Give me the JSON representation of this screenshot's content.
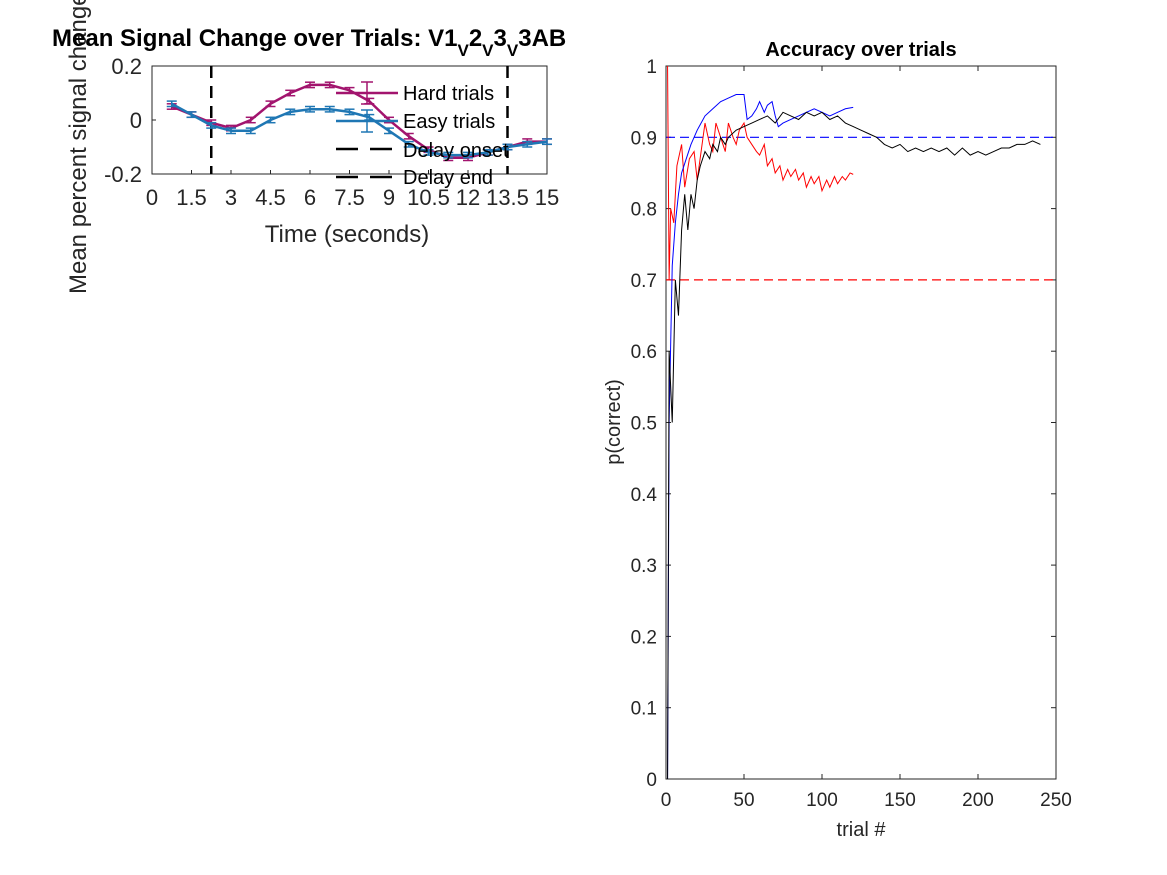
{
  "chart_data": [
    {
      "type": "line",
      "title": "Mean Signal Change over Trials: V1",
      "title_sub": [
        "V",
        "2",
        "V",
        "3",
        "V",
        "3AB"
      ],
      "xlabel": "Time (seconds)",
      "ylabel": "Mean percent signal change",
      "xlim": [
        0,
        15
      ],
      "ylim": [
        -0.2,
        0.2
      ],
      "xticks": [
        0,
        1.5,
        3,
        4.5,
        6,
        7.5,
        9,
        10.5,
        12,
        13.5,
        15
      ],
      "xtick_labels": [
        "0",
        "1.5",
        "3",
        "4.5",
        "6",
        "7.5",
        "9",
        "10.5",
        "12",
        "13.5",
        "15"
      ],
      "yticks": [
        -0.2,
        0,
        0.2
      ],
      "ytick_labels": [
        "-0.2",
        "0",
        "0.2"
      ],
      "legend": "top-right",
      "series": [
        {
          "name": "Hard trials",
          "color": "#a2146e",
          "x": [
            0.75,
            1.5,
            2.25,
            3.0,
            3.75,
            4.5,
            5.25,
            6.0,
            6.75,
            7.5,
            8.25,
            9.0,
            9.75,
            10.5,
            11.25,
            12.0,
            12.75,
            13.5,
            14.25,
            15.0
          ],
          "y": [
            0.05,
            0.02,
            -0.01,
            -0.03,
            0.0,
            0.06,
            0.1,
            0.13,
            0.13,
            0.11,
            0.07,
            0.0,
            -0.06,
            -0.11,
            -0.14,
            -0.14,
            -0.12,
            -0.1,
            -0.08,
            -0.08
          ],
          "err": [
            0.01,
            0.01,
            0.01,
            0.01,
            0.01,
            0.01,
            0.01,
            0.01,
            0.01,
            0.01,
            0.01,
            0.01,
            0.01,
            0.01,
            0.01,
            0.01,
            0.01,
            0.01,
            0.01,
            0.01
          ]
        },
        {
          "name": "Easy trials",
          "color": "#1f77b4",
          "x": [
            0.75,
            1.5,
            2.25,
            3.0,
            3.75,
            4.5,
            5.25,
            6.0,
            6.75,
            7.5,
            8.25,
            9.0,
            9.75,
            10.5,
            11.25,
            12.0,
            12.75,
            13.5,
            14.25,
            15.0
          ],
          "y": [
            0.06,
            0.02,
            -0.02,
            -0.04,
            -0.04,
            0.0,
            0.03,
            0.04,
            0.04,
            0.03,
            0.01,
            -0.04,
            -0.09,
            -0.12,
            -0.13,
            -0.13,
            -0.12,
            -0.1,
            -0.09,
            -0.08
          ],
          "err": [
            0.01,
            0.01,
            0.01,
            0.01,
            0.01,
            0.01,
            0.01,
            0.01,
            0.01,
            0.01,
            0.01,
            0.01,
            0.01,
            0.01,
            0.01,
            0.01,
            0.01,
            0.01,
            0.01,
            0.01
          ]
        }
      ],
      "vlines": [
        {
          "name": "Delay onset",
          "x": 2.25
        },
        {
          "name": "Delay end",
          "x": 13.5
        }
      ]
    },
    {
      "type": "line",
      "title": "Accuracy over trials",
      "xlabel": "trial #",
      "ylabel": "p(correct)",
      "xlim": [
        0,
        250
      ],
      "ylim": [
        0,
        1
      ],
      "xticks": [
        0,
        50,
        100,
        150,
        200,
        250
      ],
      "yticks": [
        0,
        0.1,
        0.2,
        0.3,
        0.4,
        0.5,
        0.6,
        0.7,
        0.8,
        0.9,
        1
      ],
      "ytick_labels": [
        "0",
        "0.1",
        "0.2",
        "0.3",
        "0.4",
        "0.5",
        "0.6",
        "0.7",
        "0.8",
        "0.9",
        "1"
      ],
      "hlines": [
        {
          "y": 0.9,
          "color": "#0000ff"
        },
        {
          "y": 0.7,
          "color": "#ff0000"
        }
      ],
      "series": [
        {
          "color": "#ff0000",
          "x": [
            1,
            2,
            3,
            5,
            7,
            10,
            12,
            15,
            18,
            20,
            25,
            28,
            30,
            32,
            35,
            38,
            40,
            43,
            45,
            47,
            50,
            52,
            55,
            58,
            60,
            63,
            65,
            68,
            70,
            73,
            75,
            78,
            80,
            83,
            85,
            88,
            90,
            93,
            95,
            98,
            100,
            103,
            105,
            108,
            110,
            113,
            115,
            118,
            120
          ],
          "y": [
            1.0,
            0.7,
            0.8,
            0.78,
            0.86,
            0.89,
            0.83,
            0.87,
            0.88,
            0.84,
            0.92,
            0.89,
            0.88,
            0.92,
            0.9,
            0.88,
            0.92,
            0.9,
            0.89,
            0.91,
            0.92,
            0.9,
            0.89,
            0.88,
            0.875,
            0.89,
            0.86,
            0.87,
            0.85,
            0.86,
            0.84,
            0.855,
            0.845,
            0.855,
            0.84,
            0.85,
            0.83,
            0.845,
            0.835,
            0.845,
            0.825,
            0.84,
            0.83,
            0.845,
            0.835,
            0.845,
            0.84,
            0.85,
            0.848
          ]
        },
        {
          "color": "#0000ff",
          "x": [
            1,
            2,
            4,
            6,
            8,
            10,
            13,
            16,
            20,
            25,
            30,
            35,
            40,
            45,
            50,
            52,
            55,
            58,
            60,
            63,
            65,
            68,
            70,
            72,
            75,
            80,
            85,
            90,
            95,
            100,
            105,
            110,
            115,
            120
          ],
          "y": [
            0.0,
            0.5,
            0.72,
            0.78,
            0.82,
            0.85,
            0.87,
            0.89,
            0.91,
            0.93,
            0.94,
            0.95,
            0.955,
            0.96,
            0.96,
            0.925,
            0.93,
            0.94,
            0.95,
            0.935,
            0.945,
            0.95,
            0.93,
            0.915,
            0.92,
            0.925,
            0.93,
            0.935,
            0.94,
            0.935,
            0.93,
            0.935,
            0.94,
            0.942
          ]
        },
        {
          "color": "#000000",
          "x": [
            1,
            2,
            4,
            6,
            8,
            10,
            12,
            14,
            16,
            18,
            20,
            22,
            25,
            28,
            30,
            33,
            35,
            38,
            40,
            45,
            50,
            55,
            60,
            65,
            70,
            75,
            80,
            85,
            90,
            95,
            100,
            105,
            110,
            115,
            120,
            125,
            130,
            135,
            140,
            145,
            150,
            155,
            160,
            165,
            170,
            175,
            180,
            185,
            190,
            195,
            200,
            205,
            210,
            215,
            220,
            225,
            230,
            235,
            240
          ],
          "y": [
            0.0,
            0.6,
            0.5,
            0.7,
            0.65,
            0.77,
            0.82,
            0.77,
            0.82,
            0.8,
            0.84,
            0.86,
            0.88,
            0.87,
            0.89,
            0.88,
            0.9,
            0.89,
            0.9,
            0.91,
            0.915,
            0.92,
            0.925,
            0.93,
            0.92,
            0.935,
            0.93,
            0.925,
            0.935,
            0.93,
            0.935,
            0.925,
            0.93,
            0.92,
            0.915,
            0.91,
            0.905,
            0.9,
            0.89,
            0.885,
            0.89,
            0.88,
            0.885,
            0.88,
            0.885,
            0.88,
            0.885,
            0.875,
            0.885,
            0.875,
            0.88,
            0.875,
            0.88,
            0.885,
            0.885,
            0.89,
            0.89,
            0.895,
            0.89
          ]
        }
      ]
    }
  ]
}
